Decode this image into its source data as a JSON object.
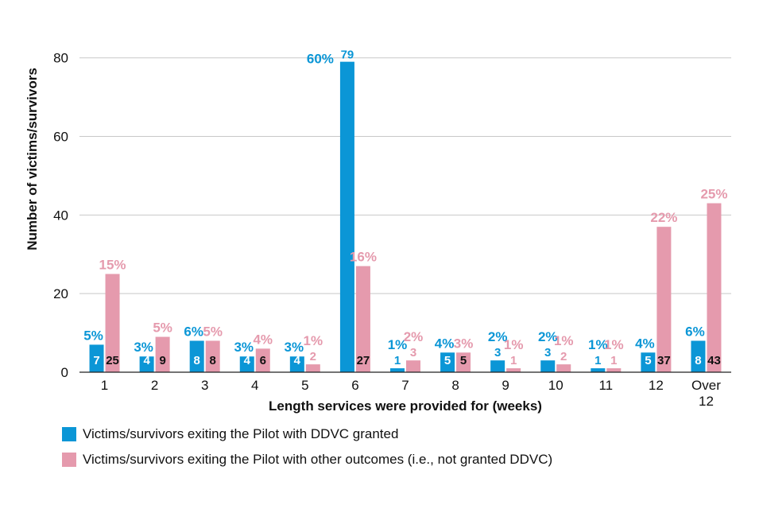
{
  "chart_data": {
    "type": "bar",
    "title": "",
    "xlabel": "Length services were provided for (weeks)",
    "ylabel": "Number of victims/survivors",
    "ylim": [
      0,
      85
    ],
    "yticks": [
      0,
      20,
      40,
      60,
      80
    ],
    "categories": [
      "1",
      "2",
      "3",
      "4",
      "5",
      "6",
      "7",
      "8",
      "9",
      "10",
      "11",
      "12",
      "Over 12"
    ],
    "series": [
      {
        "name": "Victims/survivors exiting the Pilot with DDVC granted",
        "color": "#0b96d6",
        "values": [
          7,
          4,
          8,
          4,
          4,
          79,
          1,
          5,
          3,
          3,
          1,
          5,
          8
        ],
        "percents": [
          "5%",
          "3%",
          "6%",
          "3%",
          "3%",
          "60%",
          "1%",
          "4%",
          "2%",
          "2%",
          "1%",
          "4%",
          "6%"
        ]
      },
      {
        "name": "Victims/survivors exiting the Pilot with other outcomes (i.e., not granted DDVC)",
        "color": "#e59aad",
        "values": [
          25,
          9,
          8,
          6,
          2,
          27,
          3,
          5,
          1,
          2,
          1,
          37,
          43
        ],
        "percents": [
          "15%",
          "5%",
          "5%",
          "4%",
          "1%",
          "16%",
          "2%",
          "3%",
          "1%",
          "1%",
          "1%",
          "22%",
          "25%"
        ]
      }
    ]
  }
}
